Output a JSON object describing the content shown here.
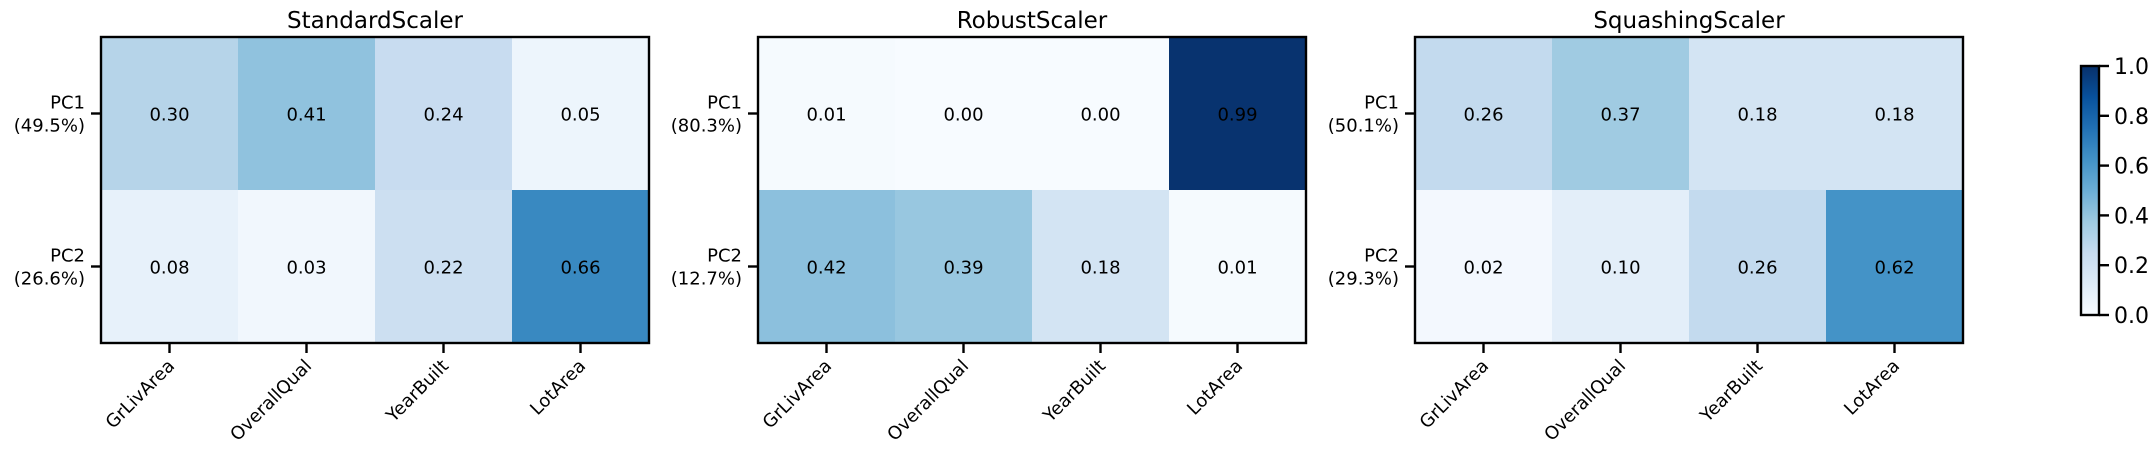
{
  "chart_data": [
    {
      "type": "heatmap",
      "title": "StandardScaler",
      "x": [
        "GrLivArea",
        "OverallQual",
        "YearBuilt",
        "LotArea"
      ],
      "y": [
        "PC1",
        "PC2"
      ],
      "y_sublabels": [
        "(49.5%)",
        "(26.6%)"
      ],
      "values": [
        [
          0.3,
          0.41,
          0.24,
          0.05
        ],
        [
          0.08,
          0.03,
          0.22,
          0.66
        ]
      ],
      "value_labels": [
        [
          "0.30",
          "0.41",
          "0.24",
          "0.05"
        ],
        [
          "0.08",
          "0.03",
          "0.22",
          "0.66"
        ]
      ]
    },
    {
      "type": "heatmap",
      "title": "RobustScaler",
      "x": [
        "GrLivArea",
        "OverallQual",
        "YearBuilt",
        "LotArea"
      ],
      "y": [
        "PC1",
        "PC2"
      ],
      "y_sublabels": [
        "(80.3%)",
        "(12.7%)"
      ],
      "values": [
        [
          0.01,
          0.0,
          0.0,
          0.99
        ],
        [
          0.42,
          0.39,
          0.18,
          0.01
        ]
      ],
      "value_labels": [
        [
          "0.01",
          "0.00",
          "0.00",
          "0.99"
        ],
        [
          "0.42",
          "0.39",
          "0.18",
          "0.01"
        ]
      ]
    },
    {
      "type": "heatmap",
      "title": "SquashingScaler",
      "x": [
        "GrLivArea",
        "OverallQual",
        "YearBuilt",
        "LotArea"
      ],
      "y": [
        "PC1",
        "PC2"
      ],
      "y_sublabels": [
        "(50.1%)",
        "(29.3%)"
      ],
      "values": [
        [
          0.26,
          0.37,
          0.18,
          0.18
        ],
        [
          0.02,
          0.1,
          0.26,
          0.62
        ]
      ],
      "value_labels": [
        [
          "0.26",
          "0.37",
          "0.18",
          "0.18"
        ],
        [
          "0.02",
          "0.10",
          "0.26",
          "0.62"
        ]
      ]
    }
  ],
  "colorbar": {
    "range": [
      0,
      1
    ],
    "ticks": [
      "0.0",
      "0.2",
      "0.4",
      "0.6",
      "0.8",
      "1.0"
    ],
    "colormap": "Blues",
    "colors": [
      "#f7fbff",
      "#deebf7",
      "#c6dbef",
      "#9ecae1",
      "#6baed6",
      "#4292c6",
      "#2171b5",
      "#08519c",
      "#08306b"
    ]
  }
}
